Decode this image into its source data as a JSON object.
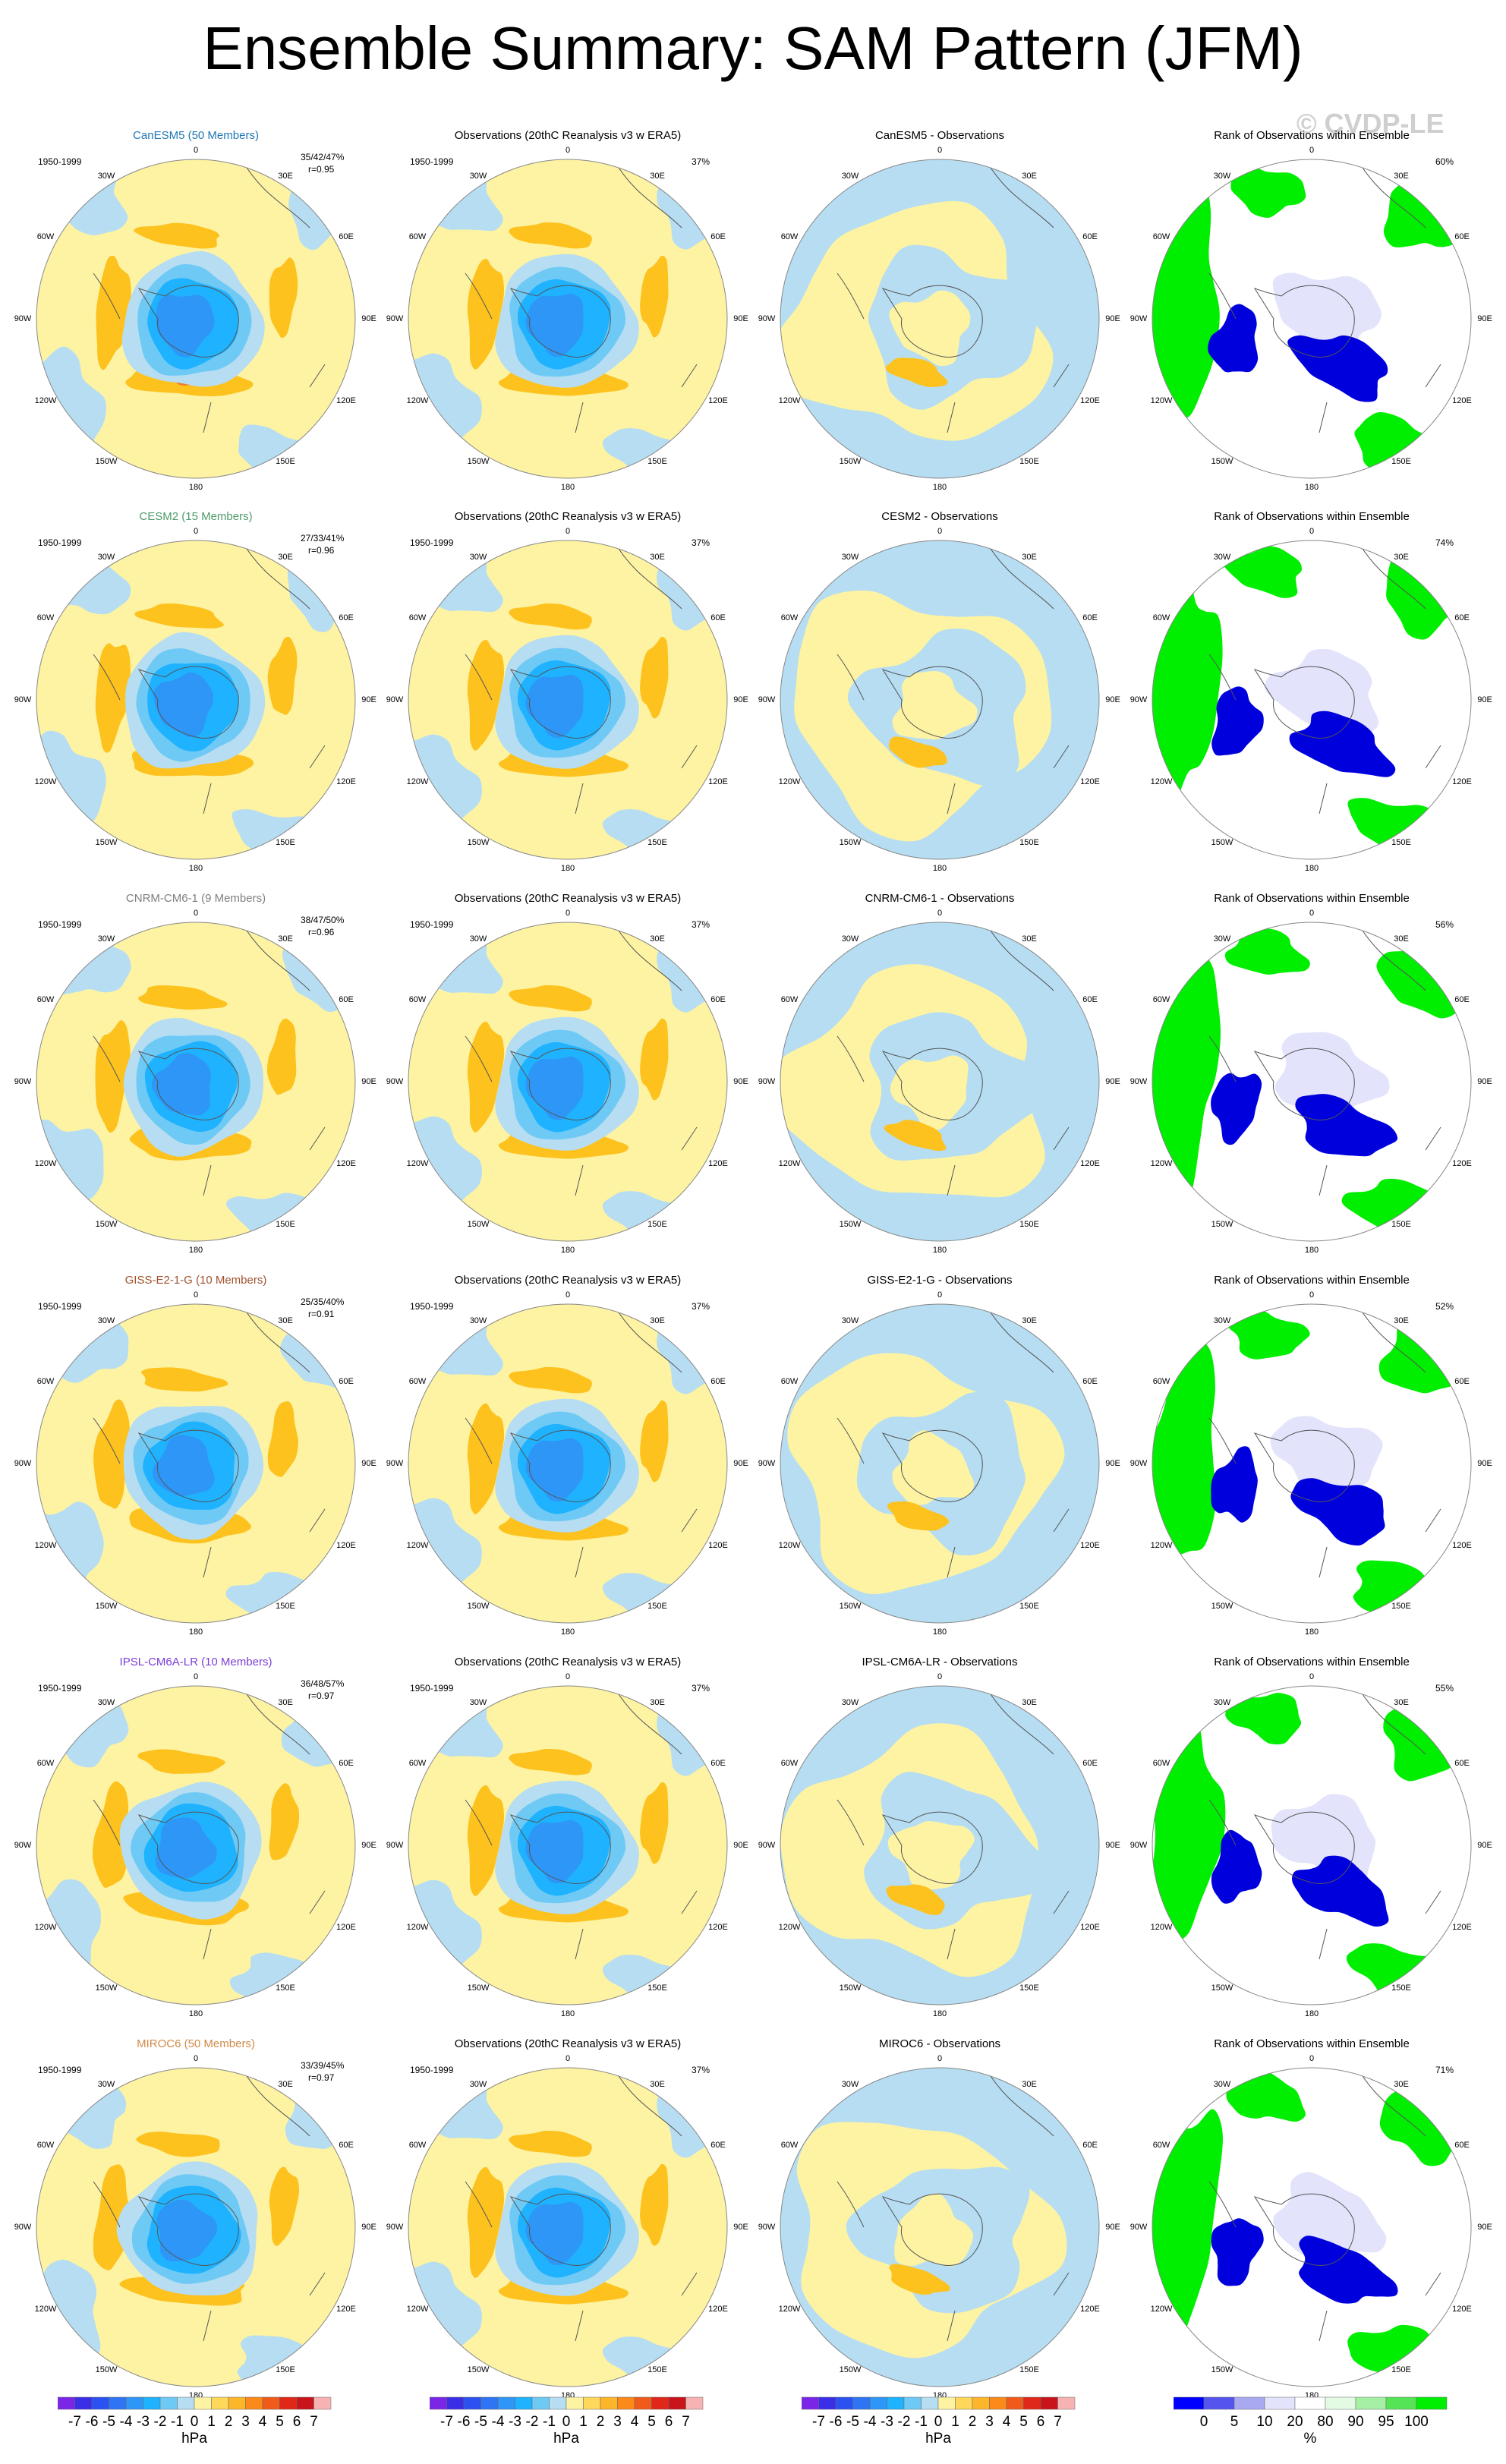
{
  "title": "Ensemble Summary: SAM Pattern (JFM)",
  "watermark": "© CVDP-LE",
  "period": "1950-1999",
  "obs_title": "Observations (20thC Reanalysis v3 w ERA5)",
  "rank_title": "Rank of Observations within Ensemble",
  "obs_pct": "37%",
  "degree_labels": [
    "0",
    "30E",
    "60E",
    "90E",
    "120E",
    "150E",
    "180",
    "150W",
    "120W",
    "90W",
    "60W",
    "30W"
  ],
  "rows": [
    {
      "model": "CanESM5 (50 Members)",
      "color": "#1f77b4",
      "stats": "35/42/47%",
      "r": "r=0.95",
      "diff_title": "CanESM5 - Observations",
      "rank_pct": "60%"
    },
    {
      "model": "CESM2 (15 Members)",
      "color": "#4e9a6a",
      "stats": "27/33/41%",
      "r": "r=0.96",
      "diff_title": "CESM2 - Observations",
      "rank_pct": "74%"
    },
    {
      "model": "CNRM-CM6-1 (9 Members)",
      "color": "#7f7f7f",
      "stats": "38/47/50%",
      "r": "r=0.96",
      "diff_title": "CNRM-CM6-1 - Observations",
      "rank_pct": "56%"
    },
    {
      "model": "GISS-E2-1-G (10 Members)",
      "color": "#a0522d",
      "stats": "25/35/40%",
      "r": "r=0.91",
      "diff_title": "GISS-E2-1-G - Observations",
      "rank_pct": "52%"
    },
    {
      "model": "IPSL-CM6A-LR (10 Members)",
      "color": "#7b3fd6",
      "stats": "36/48/57%",
      "r": "r=0.97",
      "diff_title": "IPSL-CM6A-LR - Observations",
      "rank_pct": "55%"
    },
    {
      "model": "MIROC6 (50 Members)",
      "color": "#d08a4a",
      "stats": "33/39/45%",
      "r": "r=0.97",
      "diff_title": "MIROC6 - Observations",
      "rank_pct": "71%"
    }
  ],
  "colorbars": {
    "hpa": {
      "labels": [
        "-7",
        "-6",
        "-5",
        "-4",
        "-3",
        "-2",
        "-1",
        "0",
        "1",
        "2",
        "3",
        "4",
        "5",
        "6",
        "7"
      ],
      "unit": "hPa",
      "colors": [
        "#7b26e6",
        "#3a2ee6",
        "#2b52f0",
        "#2f74f4",
        "#2e96f6",
        "#1fb2ff",
        "#6ecaf5",
        "#b6ddf2",
        "#fdf3a3",
        "#fdd85a",
        "#fdb52a",
        "#fc8a1b",
        "#f05a1a",
        "#e0281a",
        "#c8141a",
        "#f7b3b3"
      ]
    },
    "pct": {
      "labels": [
        "0",
        "5",
        "10",
        "20",
        "80",
        "90",
        "95",
        "100"
      ],
      "unit": "%",
      "colors": [
        "#0000ff",
        "#5555ee",
        "#a9a9f2",
        "#e3e3fb",
        "#ffffff",
        "#e3fbe3",
        "#a6f0a6",
        "#55e455",
        "#00ee00"
      ]
    }
  },
  "palette": {
    "yellow": "#fdf3a3",
    "orange": "#fdc21e",
    "red": "#f07a2a",
    "lightblue": "#b6ddf2",
    "blue2": "#6ecaf5",
    "blue3": "#1fb2ff",
    "blue4": "#2e96f6",
    "green": "#00ee00",
    "rankblue": "#0000dd",
    "rankpale": "#e3e3fb"
  }
}
